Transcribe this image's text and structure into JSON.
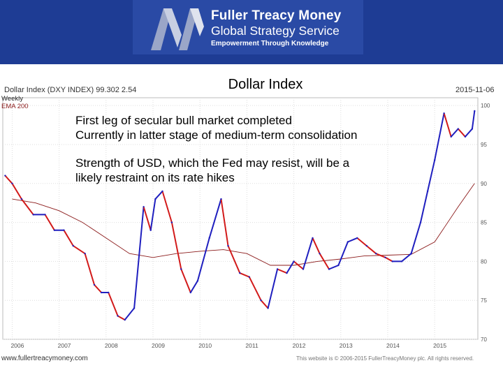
{
  "banner": {
    "brand_name": "Fuller Treacy Money",
    "brand_service": "Global Strategy Service",
    "tagline": "Empowerment Through Knowledge",
    "colors": {
      "background": "#1e3c94",
      "box": "#2a4aa5",
      "text": "#ffffff"
    }
  },
  "slide": {
    "title": "Dollar Index",
    "annotations": [
      "First leg of secular bull market completed",
      "Currently in latter stage of medium-term consolidation",
      "Strength of USD, which the Fed may resist, will be a",
      "likely restraint on its rate hikes"
    ]
  },
  "chart_header": {
    "name": "Dollar Index (DXY INDEX) 99.302 2.54",
    "date": "2015-11-06",
    "legend": [
      "Weekly",
      "EMA 200"
    ]
  },
  "footer": {
    "left": "www.fullertreacymoney.com",
    "right": "This website is © 2006-2015 FullerTreacyMoney plc. All rights reserved."
  },
  "chart_data": {
    "type": "line",
    "x_tick_labels": [
      "2006",
      "2007",
      "2008",
      "2009",
      "2010",
      "2011",
      "2012",
      "2013",
      "2014",
      "2015"
    ],
    "y_ticks": [
      70,
      75,
      80,
      85,
      90,
      95,
      100
    ],
    "ylim": [
      70,
      101
    ],
    "xlim": [
      2005.8,
      2015.92
    ],
    "grid": true,
    "legend": "top-left",
    "colors": {
      "up": "#1f1fbf",
      "down": "#d21a1a",
      "ema": "#8b1a1a",
      "grid": "#dddddd"
    },
    "series": [
      {
        "name": "Weekly",
        "x": [
          2005.85,
          2006.0,
          2006.2,
          2006.45,
          2006.7,
          2006.9,
          2007.1,
          2007.3,
          2007.55,
          2007.75,
          2007.9,
          2008.05,
          2008.25,
          2008.4,
          2008.6,
          2008.8,
          2008.95,
          2009.05,
          2009.2,
          2009.4,
          2009.6,
          2009.8,
          2009.95,
          2010.2,
          2010.45,
          2010.6,
          2010.85,
          2011.05,
          2011.3,
          2011.45,
          2011.65,
          2011.85,
          2012.0,
          2012.2,
          2012.4,
          2012.55,
          2012.75,
          2012.95,
          2013.15,
          2013.35,
          2013.55,
          2013.75,
          2013.95,
          2014.1,
          2014.3,
          2014.5,
          2014.7,
          2014.85,
          2015.0,
          2015.2,
          2015.35,
          2015.5,
          2015.65,
          2015.8,
          2015.85
        ],
        "y": [
          91,
          90,
          88,
          86,
          86,
          84,
          84,
          82,
          81,
          77,
          76,
          76,
          73,
          72.5,
          74,
          87,
          84,
          88,
          89,
          85,
          79,
          76,
          77.5,
          83,
          88,
          82,
          78.5,
          78,
          75,
          74,
          79,
          78.5,
          80,
          79,
          83,
          81,
          79,
          79.5,
          82.5,
          83,
          82,
          81,
          80.5,
          80,
          80,
          81,
          85,
          89,
          93,
          99,
          96,
          97,
          96,
          97,
          99.3
        ]
      },
      {
        "name": "EMA 200",
        "x": [
          2006.0,
          2006.5,
          2007.0,
          2007.5,
          2008.0,
          2008.5,
          2009.0,
          2009.5,
          2010.0,
          2010.5,
          2011.0,
          2011.5,
          2012.0,
          2012.5,
          2013.0,
          2013.5,
          2014.0,
          2014.5,
          2015.0,
          2015.5,
          2015.85
        ],
        "y": [
          88,
          87.5,
          86.5,
          85,
          83,
          81,
          80.5,
          81,
          81.3,
          81.5,
          81,
          79.5,
          79.5,
          80,
          80.3,
          80.7,
          80.8,
          80.9,
          82.5,
          87,
          90
        ]
      }
    ]
  }
}
